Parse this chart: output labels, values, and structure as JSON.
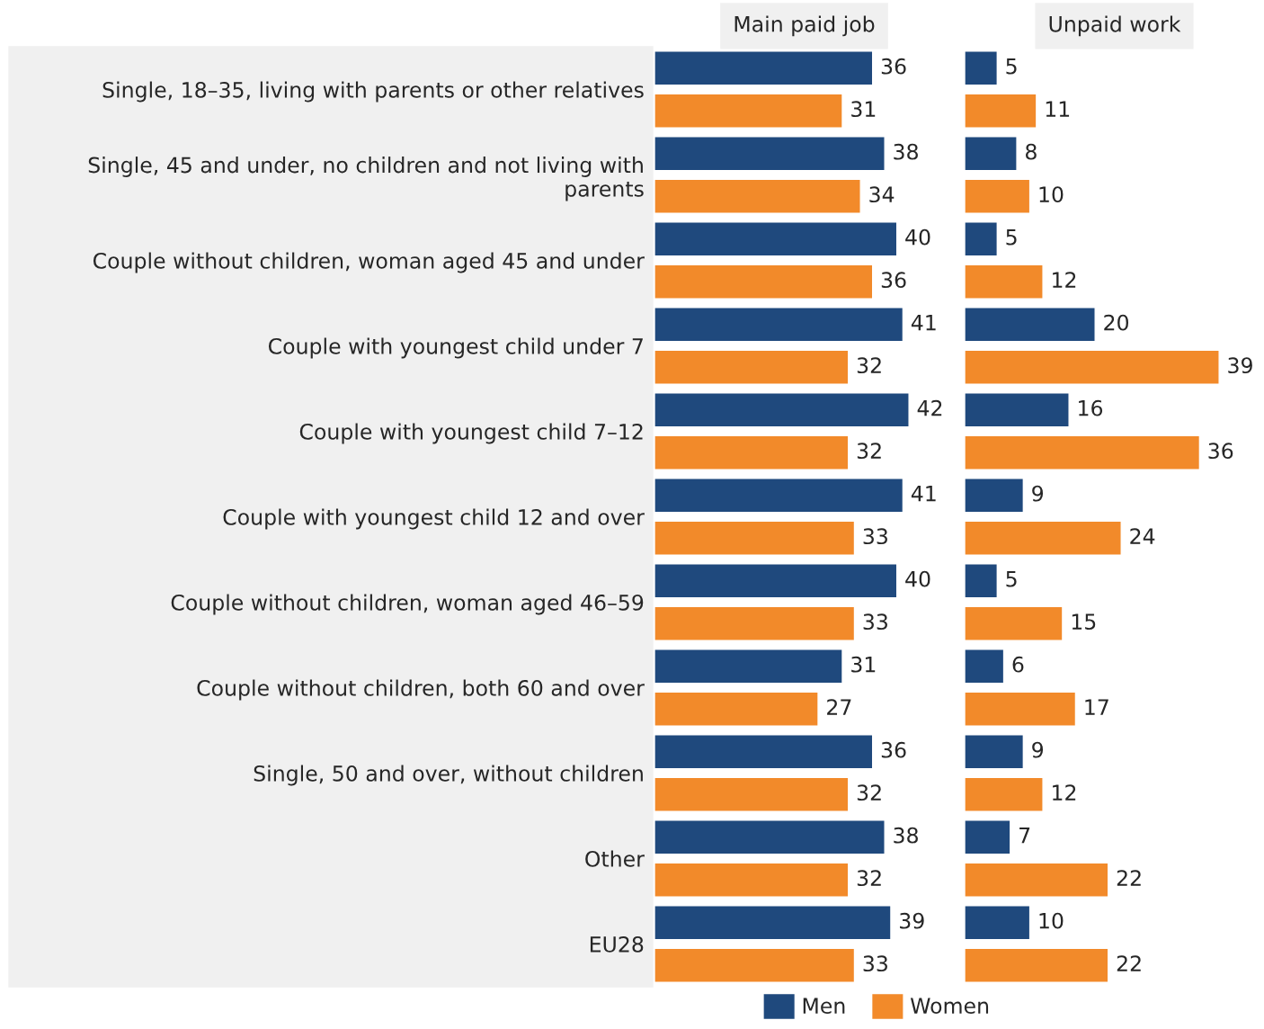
{
  "chart_data": [
    {
      "type": "bar",
      "orientation": "horizontal",
      "title": "Main paid job",
      "data_labels": true,
      "tick_labels": "y",
      "grid": false,
      "legend": "bottom",
      "categories": [
        "Single, 18–35, living with parents or other relatives",
        "Single, 45 and under, no children and not living with parents",
        "Couple without children, woman aged 45 and under",
        "Couple with youngest child under 7",
        "Couple with youngest child 7–12",
        "Couple with youngest child 12 and over",
        "Couple without children, woman aged 46–59",
        "Couple without children, both 60 and over",
        "Single, 50 and over, without children",
        "Other",
        "EU28"
      ],
      "series": [
        {
          "name": "Men",
          "color": "#1f497d",
          "values": [
            36,
            38,
            40,
            41,
            42,
            41,
            40,
            31,
            36,
            38,
            39
          ]
        },
        {
          "name": "Women",
          "color": "#f28a2a",
          "values": [
            31,
            34,
            36,
            32,
            32,
            33,
            33,
            27,
            32,
            32,
            33
          ]
        }
      ]
    },
    {
      "type": "bar",
      "orientation": "horizontal",
      "title": "Unpaid work",
      "data_labels": true,
      "tick_labels": false,
      "grid": false,
      "categories": [
        null,
        null,
        null,
        null,
        null,
        null,
        null,
        null,
        null,
        null,
        null
      ],
      "series": [
        {
          "color": "#1f497d",
          "values": [
            5,
            8,
            5,
            20,
            16,
            9,
            5,
            6,
            9,
            7,
            10
          ]
        },
        {
          "color": "#f28a2a",
          "values": [
            11,
            10,
            12,
            39,
            36,
            24,
            15,
            17,
            12,
            22,
            22
          ]
        }
      ]
    }
  ]
}
